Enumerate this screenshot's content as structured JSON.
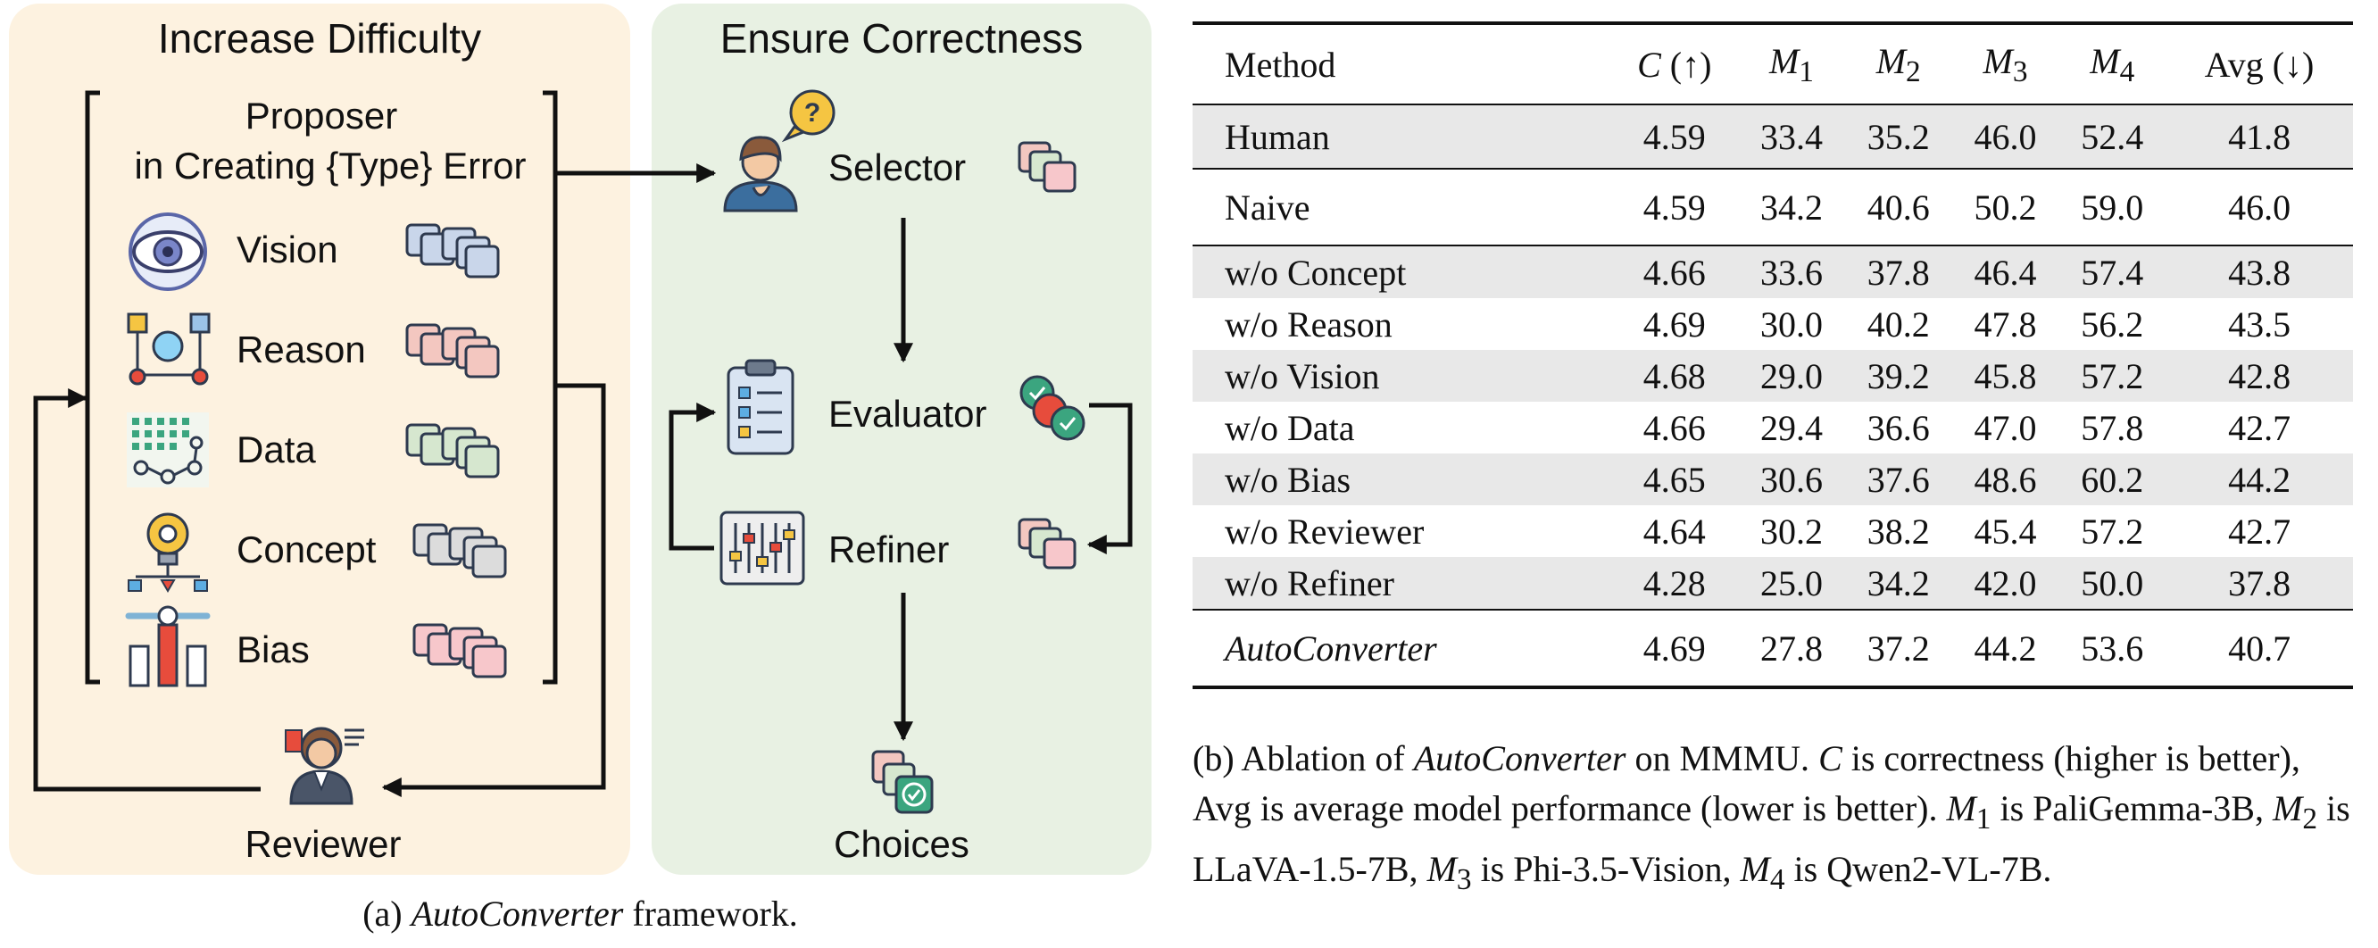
{
  "figure_a": {
    "left_panel": {
      "title": "Increase Difficulty",
      "proposer_line1": "Proposer",
      "proposer_line2": "in Creating {Type} Error",
      "items": [
        {
          "label": "Vision",
          "icon": "eye-icon",
          "color": "#c9d6ea"
        },
        {
          "label": "Reason",
          "icon": "flowchart-icon",
          "color": "#f3c7c0"
        },
        {
          "label": "Data",
          "icon": "data-network-icon",
          "color": "#d6e7cf"
        },
        {
          "label": "Concept",
          "icon": "lightbulb-gear-icon",
          "color": "#dcdcdc"
        },
        {
          "label": "Bias",
          "icon": "raised-hands-icon",
          "color": "#f7c7cb"
        }
      ],
      "reviewer_label": "Reviewer",
      "bg_color": "#fdf2e0"
    },
    "right_panel": {
      "title": "Ensure Correctness",
      "selector_label": "Selector",
      "evaluator_label": "Evaluator",
      "refiner_label": "Refiner",
      "choices_label": "Choices",
      "question_mark": "?",
      "bg_color": "#e8f1e3"
    },
    "caption_prefix": "(a) ",
    "caption_italic": "AutoConverter",
    "caption_suffix": " framework."
  },
  "table_b": {
    "headers": [
      "Method",
      "C (↑)",
      "M1",
      "M2",
      "M3",
      "M4",
      "Avg (↓)"
    ],
    "rows": [
      {
        "method": "Human",
        "values": [
          "4.59",
          "33.4",
          "35.2",
          "46.0",
          "52.4",
          "41.8"
        ]
      },
      {
        "method": "Naive",
        "values": [
          "4.59",
          "34.2",
          "40.6",
          "50.2",
          "59.0",
          "46.0"
        ]
      },
      {
        "method": "w/o Concept",
        "values": [
          "4.66",
          "33.6",
          "37.8",
          "46.4",
          "57.4",
          "43.8"
        ]
      },
      {
        "method": "w/o Reason",
        "values": [
          "4.69",
          "30.0",
          "40.2",
          "47.8",
          "56.2",
          "43.5"
        ]
      },
      {
        "method": "w/o Vision",
        "values": [
          "4.68",
          "29.0",
          "39.2",
          "45.8",
          "57.2",
          "42.8"
        ]
      },
      {
        "method": "w/o Data",
        "values": [
          "4.66",
          "29.4",
          "36.6",
          "47.0",
          "57.8",
          "42.7"
        ]
      },
      {
        "method": "w/o Bias",
        "values": [
          "4.65",
          "30.6",
          "37.6",
          "48.6",
          "60.2",
          "44.2"
        ]
      },
      {
        "method": "w/o Reviewer",
        "values": [
          "4.64",
          "30.2",
          "38.2",
          "45.4",
          "57.2",
          "42.7"
        ]
      },
      {
        "method": "w/o Refiner",
        "values": [
          "4.28",
          "25.0",
          "34.2",
          "42.0",
          "50.0",
          "37.8"
        ]
      },
      {
        "method": "AutoConverter",
        "values": [
          "4.69",
          "27.8",
          "37.2",
          "44.2",
          "53.6",
          "40.7"
        ]
      }
    ],
    "caption": {
      "p1": "(b) Ablation of ",
      "p2": "AutoConverter",
      "p3": " on MMMU. ",
      "p4": "C",
      "p5": " is correctness (higher is better), Avg is average model performance (lower is better). ",
      "p6": "M",
      "p6s": "1",
      "p7": " is PaliGemma-3B, ",
      "p8": "M",
      "p8s": "2",
      "p9": " is LLaVA-1.5-7B, ",
      "p10": "M",
      "p10s": "3",
      "p11": " is Phi-3.5-Vision, ",
      "p12": "M",
      "p12s": "4",
      "p13": " is Qwen2-VL-7B."
    }
  }
}
